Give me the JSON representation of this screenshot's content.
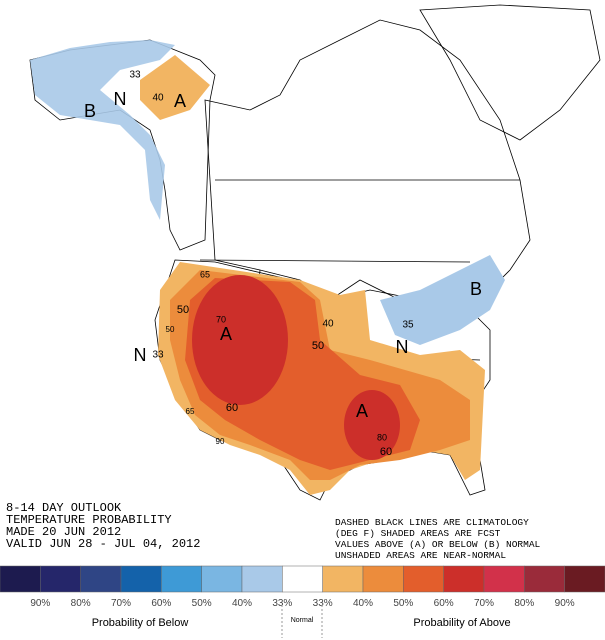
{
  "map_labels": [
    "A",
    "A",
    "A",
    "B",
    "B",
    "N",
    "N",
    "N",
    "33",
    "40",
    "40",
    "50",
    "50",
    "60",
    "60",
    "70",
    "80",
    "33",
    "35",
    "65",
    "65",
    "90",
    "50"
  ],
  "outlook": {
    "lines": [
      "8-14 DAY OUTLOOK",
      "TEMPERATURE PROBABILITY",
      "MADE  20 JUN 2012",
      "VALID  JUN 28 - JUL 04, 2012"
    ]
  },
  "notes": {
    "lines": [
      "DASHED BLACK LINES ARE CLIMATOLOGY",
      "(DEG F) SHADED AREAS ARE FCST",
      "VALUES ABOVE (A) OR BELOW (B) NORMAL",
      "UNSHADED AREAS ARE NEAR-NORMAL"
    ]
  },
  "legend": {
    "colors": [
      "#1d1b4f",
      "#25266a",
      "#2f4585",
      "#1462aa",
      "#3e9ad6",
      "#7ab6e2",
      "#a9c9e8",
      "#ffffff",
      "#f2b563",
      "#ec8c3c",
      "#e35e2c",
      "#cc2f2a",
      "#d2314a",
      "#9a2b3a",
      "#6a1b22"
    ],
    "labels": [
      "90%",
      "80%",
      "70%",
      "60%",
      "50%",
      "40%",
      "33%",
      "33%",
      "40%",
      "50%",
      "60%",
      "70%",
      "80%",
      "90%"
    ],
    "below": "Probability of Below",
    "normal": "Normal",
    "above": "Probability of Above"
  }
}
